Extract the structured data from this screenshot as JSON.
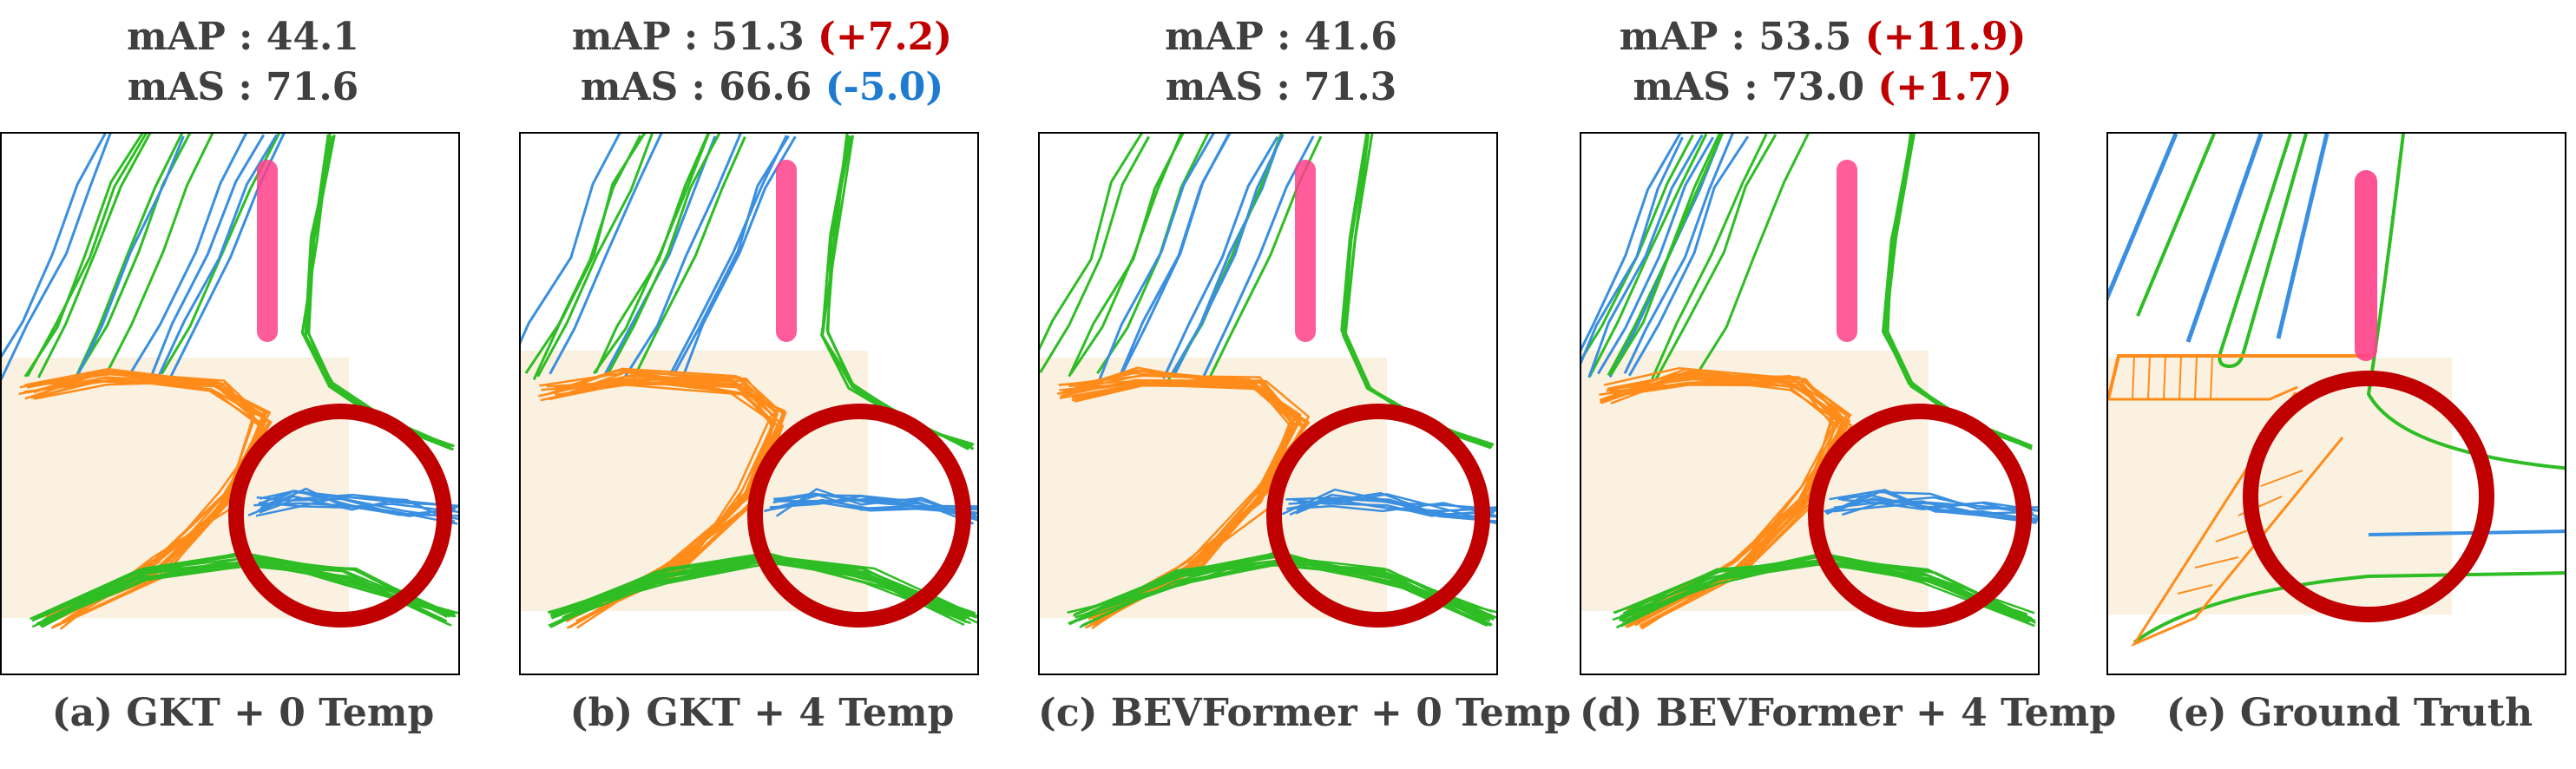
{
  "panels": [
    {
      "id": "a",
      "mAP_label": "mAP",
      "mAP_value": "44.1",
      "mAP_delta": "",
      "mAS_label": "mAS",
      "mAS_value": "71.6",
      "mAS_delta": "",
      "caption": "(a) GKT + 0 Temp"
    },
    {
      "id": "b",
      "mAP_label": "mAP",
      "mAP_value": "51.3",
      "mAP_delta": "(+7.2)",
      "mAS_label": "mAS",
      "mAS_value": "66.6",
      "mAS_delta": "(-5.0)",
      "caption": "(b) GKT + 4 Temp"
    },
    {
      "id": "c",
      "mAP_label": "mAP",
      "mAP_value": "41.6",
      "mAP_delta": "",
      "mAS_label": "mAS",
      "mAS_value": "71.3",
      "mAS_delta": "",
      "caption": "(c) BEVFormer + 0 Temp"
    },
    {
      "id": "d",
      "mAP_label": "mAP",
      "mAP_value": "53.5",
      "mAP_delta": "(+11.9)",
      "mAS_label": "mAS",
      "mAS_value": "73.0",
      "mAS_delta": "(+1.7)",
      "caption": "(d) BEVFormer + 4 Temp"
    },
    {
      "id": "e",
      "caption": "(e) Ground Truth"
    }
  ],
  "colors": {
    "divider": "#2ebd24",
    "boundary": "#ff8c1a",
    "ped_crossing": "#3a8fe0",
    "circle": "#c00000",
    "ego": "#ff3f8a",
    "tint": "#fbf1e0",
    "delta_positive": "#c00000",
    "delta_negative": "#1f7bd0"
  }
}
